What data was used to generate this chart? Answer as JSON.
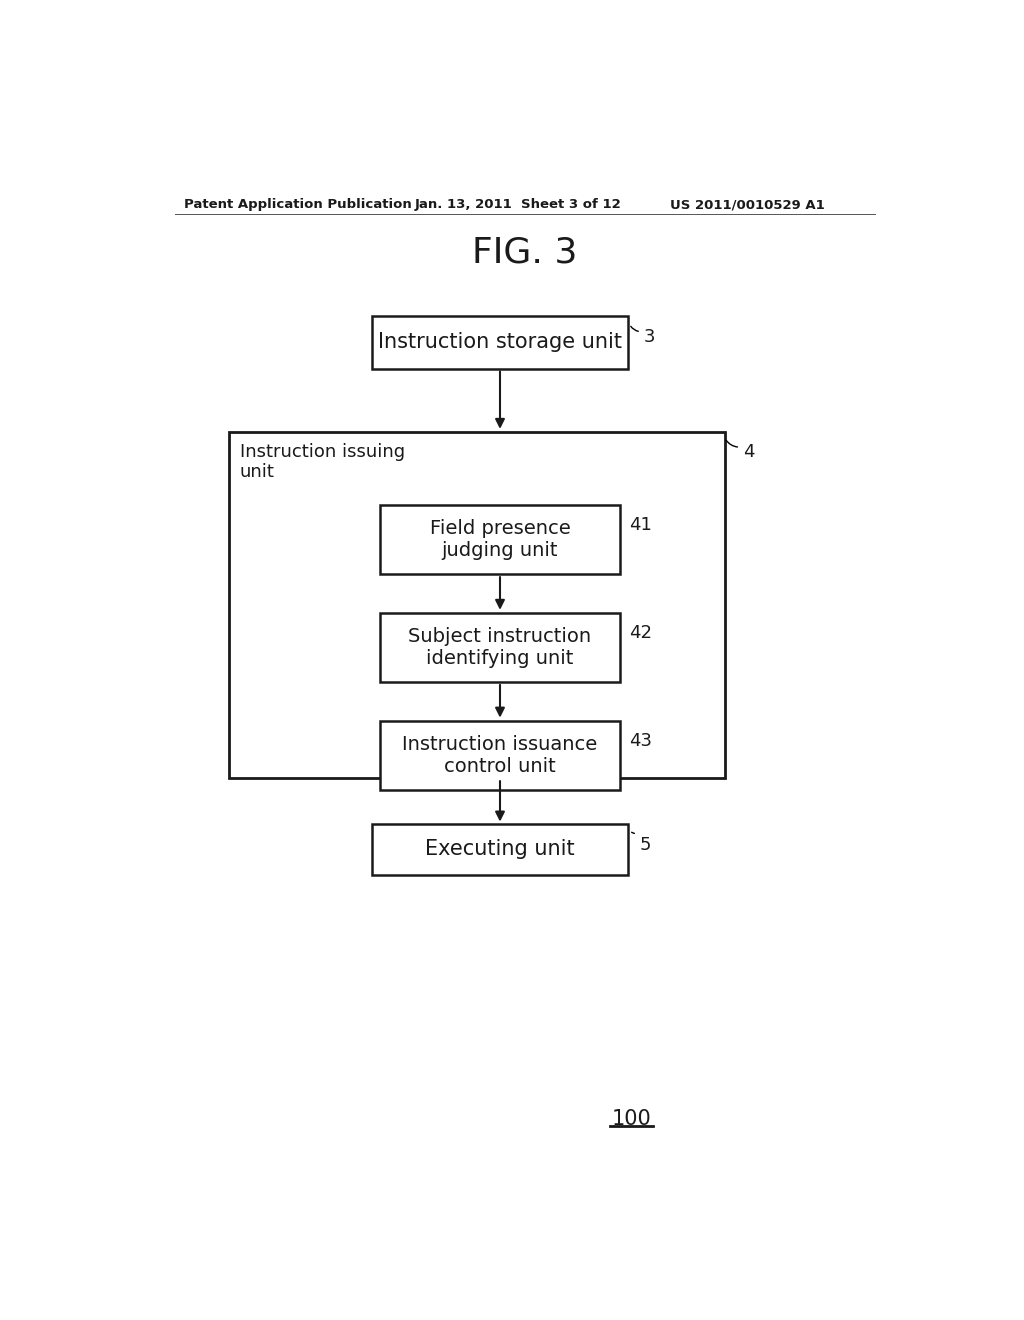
{
  "bg_color": "#ffffff",
  "header_left": "Patent Application Publication",
  "header_mid": "Jan. 13, 2011  Sheet 3 of 12",
  "header_right": "US 2011/0010529 A1",
  "fig_label": "FIG. 3",
  "footer_label": "100",
  "box_storage": "Instruction storage unit",
  "label_storage": "3",
  "outer_box_label": "Instruction issuing\nunit",
  "label_outer": "4",
  "box_41": "Field presence\njudging unit",
  "label_41": "41",
  "box_42": "Subject instruction\nidentifying unit",
  "label_42": "42",
  "box_43": "Instruction issuance\ncontrol unit",
  "label_43": "43",
  "box_exec": "Executing unit",
  "label_exec": "5",
  "box_color": "#ffffff",
  "box_edge_color": "#1a1a1a",
  "text_color": "#1a1a1a",
  "arrow_color": "#1a1a1a",
  "header_line_color": "#555555"
}
